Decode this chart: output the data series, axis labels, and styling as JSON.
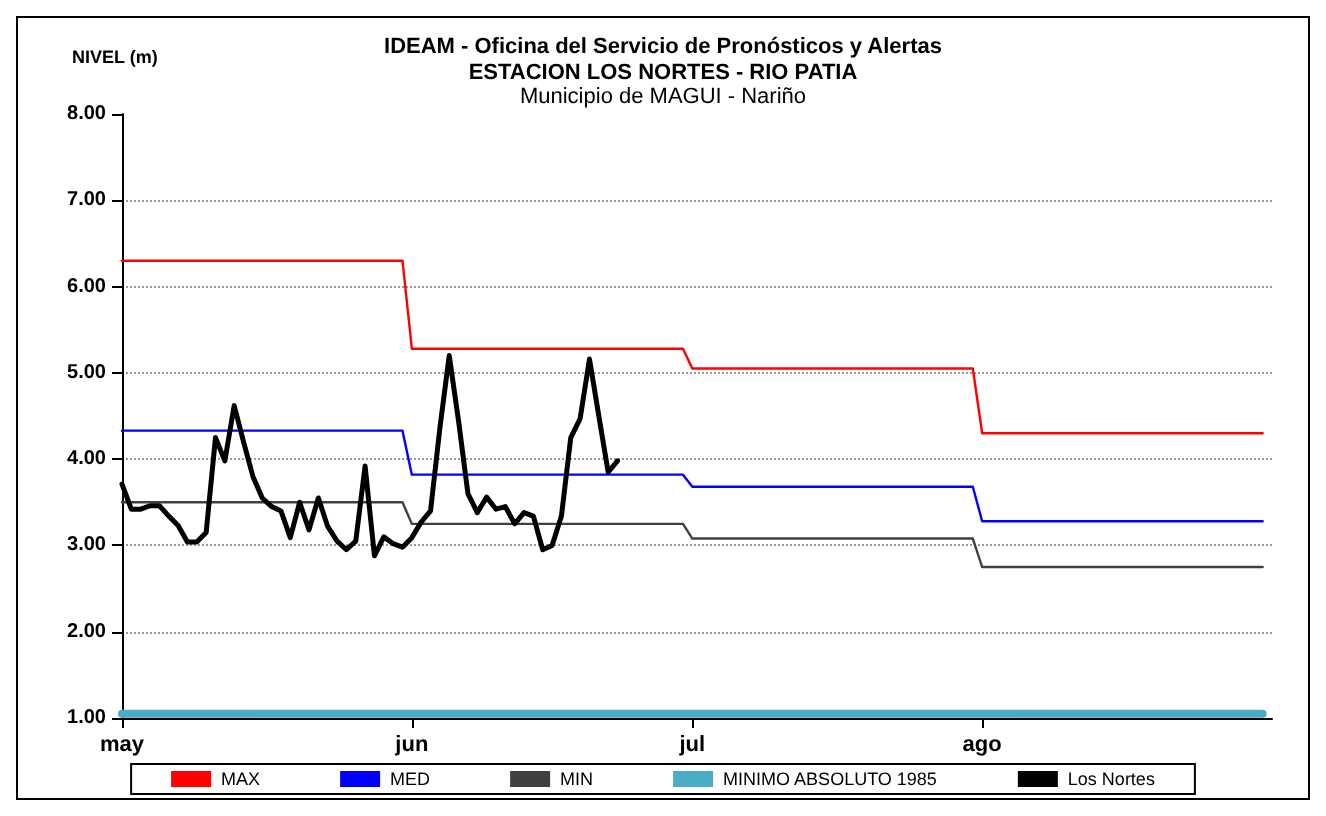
{
  "chart_data": {
    "type": "line",
    "title": "IDEAM - Oficina del Servicio de Pronósticos y Alertas",
    "subtitle": "ESTACION LOS NORTES - RIO PATIA\nMunicipio de MAGUI - Nariño",
    "ylabel": "NIVEL (m)",
    "ylim": [
      1,
      8
    ],
    "yticks": [
      {
        "value": 1,
        "label": "1.00"
      },
      {
        "value": 2,
        "label": "2.00"
      },
      {
        "value": 3,
        "label": "3.00"
      },
      {
        "value": 4,
        "label": "4.00"
      },
      {
        "value": 5,
        "label": "5.00"
      },
      {
        "value": 6,
        "label": "6.00"
      },
      {
        "value": 7,
        "label": "7.00"
      },
      {
        "value": 8,
        "label": "8.00"
      }
    ],
    "xlim": [
      "--05-01",
      "--09-01"
    ],
    "xticks": [
      {
        "value": "--05-01",
        "label": "may"
      },
      {
        "value": "--06-01",
        "label": "jun"
      },
      {
        "value": "--07-01",
        "label": "jul"
      },
      {
        "value": "--08-01",
        "label": "ago"
      }
    ],
    "grid": "y",
    "legend": "bottom",
    "marker": "none",
    "line_style": "solid",
    "series": [
      {
        "name": "MAX",
        "color": "#ff0000",
        "x": [
          "--05-01",
          "--05-31",
          "--06-01",
          "--06-30",
          "--07-01",
          "--07-31",
          "--08-01",
          "--08-31"
        ],
        "values": [
          6.3,
          6.3,
          5.28,
          5.28,
          5.05,
          5.05,
          4.3,
          4.3
        ]
      },
      {
        "name": "MED",
        "color": "#0000ff",
        "x": [
          "--05-01",
          "--05-31",
          "--06-01",
          "--06-30",
          "--07-01",
          "--07-31",
          "--08-01",
          "--08-31"
        ],
        "values": [
          4.33,
          4.33,
          3.82,
          3.82,
          3.68,
          3.68,
          3.28,
          3.28
        ]
      },
      {
        "name": "MIN",
        "color": "#404040",
        "x": [
          "--05-01",
          "--05-31",
          "--06-01",
          "--06-30",
          "--07-01",
          "--07-31",
          "--08-01",
          "--08-31"
        ],
        "values": [
          3.5,
          3.5,
          3.25,
          3.25,
          3.08,
          3.08,
          2.75,
          2.75
        ]
      },
      {
        "name": "MINIMO ABSOLUTO 1985",
        "color": "#4bacc6",
        "x": [
          "--05-01",
          "--08-31"
        ],
        "values": [
          1.05,
          1.05
        ]
      },
      {
        "name": "Los Nortes",
        "color": "#000000",
        "x": [
          "--05-01",
          "--05-02",
          "--05-03",
          "--05-04",
          "--05-05",
          "--05-06",
          "--05-07",
          "--05-08",
          "--05-09",
          "--05-10",
          "--05-11",
          "--05-12",
          "--05-13",
          "--05-14",
          "--05-15",
          "--05-16",
          "--05-17",
          "--05-18",
          "--05-19",
          "--05-20",
          "--05-21",
          "--05-22",
          "--05-23",
          "--05-24",
          "--05-25",
          "--05-26",
          "--05-27",
          "--05-28",
          "--05-29",
          "--05-30",
          "--05-31",
          "--06-01",
          "--06-02",
          "--06-03",
          "--06-04",
          "--06-05",
          "--06-06",
          "--06-07",
          "--06-08",
          "--06-09",
          "--06-10",
          "--06-11",
          "--06-12",
          "--06-13",
          "--06-14",
          "--06-15",
          "--06-16",
          "--06-17",
          "--06-18",
          "--06-19",
          "--06-20",
          "--06-21",
          "--06-22",
          "--06-23"
        ],
        "values": [
          3.71,
          3.42,
          3.42,
          3.46,
          3.46,
          3.34,
          3.23,
          3.04,
          3.04,
          3.15,
          4.25,
          3.98,
          4.62,
          4.2,
          3.8,
          3.55,
          3.45,
          3.4,
          3.09,
          3.5,
          3.18,
          3.55,
          3.22,
          3.05,
          2.95,
          3.05,
          3.92,
          2.88,
          3.1,
          3.02,
          2.98,
          3.09,
          3.27,
          3.4,
          4.36,
          5.2,
          4.44,
          3.6,
          3.38,
          3.56,
          3.42,
          3.45,
          3.25,
          3.38,
          3.34,
          2.95,
          3.0,
          3.34,
          4.25,
          4.47,
          5.16,
          4.5,
          3.85,
          3.98
        ]
      }
    ]
  }
}
